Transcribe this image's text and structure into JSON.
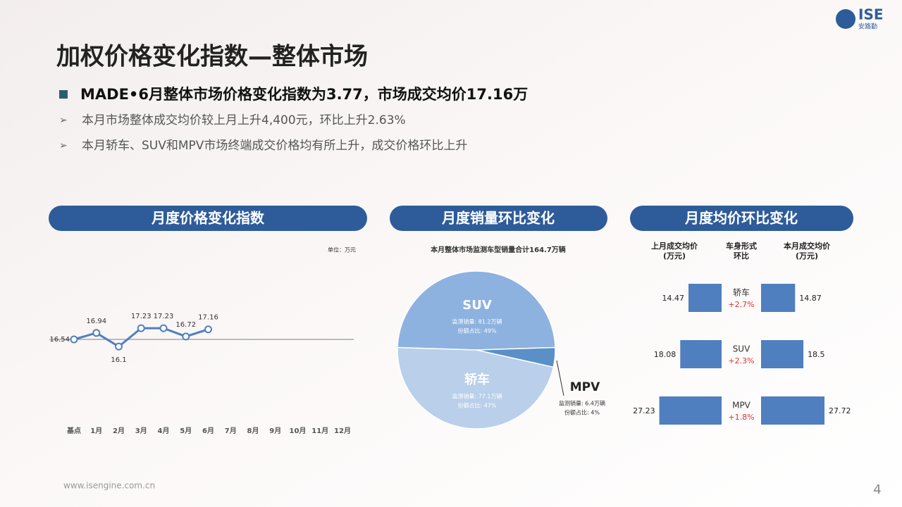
{
  "title": "加权价格变化指数—整体市场",
  "headline": "MADE•6月整体市场价格变化指数为3.77，市场成交均价17.16万",
  "bullets": [
    "本月市场整体成交均价较上月上升4,400元，环比上升2.63%",
    "本月轿车、SUV和MPV市场终端成交价格均有所上升，成交价格环比上升"
  ],
  "logo": {
    "text": "ISE",
    "subtext": "安路勤"
  },
  "footer": "www.isengine.com.cn",
  "page_number": "4",
  "chart_data": [
    {
      "type": "line",
      "title": "月度价格变化指数",
      "unit": "单位：万元",
      "categories": [
        "基点",
        "1月",
        "2月",
        "3月",
        "4月",
        "5月",
        "6月",
        "7月",
        "8月",
        "9月",
        "10月",
        "11月",
        "12月"
      ],
      "values": [
        16.54,
        16.94,
        16.1,
        17.23,
        17.23,
        16.72,
        17.16,
        null,
        null,
        null,
        null,
        null,
        null
      ],
      "color": "#4f7fbf"
    },
    {
      "type": "pie",
      "title": "月度销量环比变化",
      "subtitle": "本月整体市场监测车型销量合计164.7万辆",
      "categories": [
        "SUV",
        "MPV",
        "轿车"
      ],
      "values": [
        49,
        4,
        47
      ],
      "value_labels": [
        "份额占比: 49%",
        "份额占比: 4%",
        "份额占比: 47%"
      ],
      "sales": [
        81.2,
        6.4,
        77.1
      ],
      "sales_labels": [
        "监测销量: 81.2万辆",
        "监测销量: 6.4万辆",
        "监测销量: 77.1万辆"
      ],
      "colors": [
        "#8db2df",
        "#5b8fc7",
        "#b9cfea"
      ]
    },
    {
      "type": "diverging-bar",
      "title": "月度均价环比变化",
      "column_headers": [
        [
          "上月成交均价",
          "(万元)"
        ],
        [
          "车身形式",
          "环比"
        ],
        [
          "本月成交均价",
          "(万元)"
        ]
      ],
      "categories": [
        "轿车",
        "SUV",
        "MPV"
      ],
      "series": [
        {
          "values": [
            14.47,
            18.08,
            27.23
          ],
          "color": "#4f7fbf"
        },
        {
          "values": [
            14.87,
            18.5,
            27.72
          ],
          "color": "#4f7fbf"
        }
      ],
      "changes": [
        2.7,
        2.3,
        1.8
      ],
      "change_labels": [
        "+2.7%",
        "+2.3%",
        "+1.8%"
      ]
    }
  ]
}
